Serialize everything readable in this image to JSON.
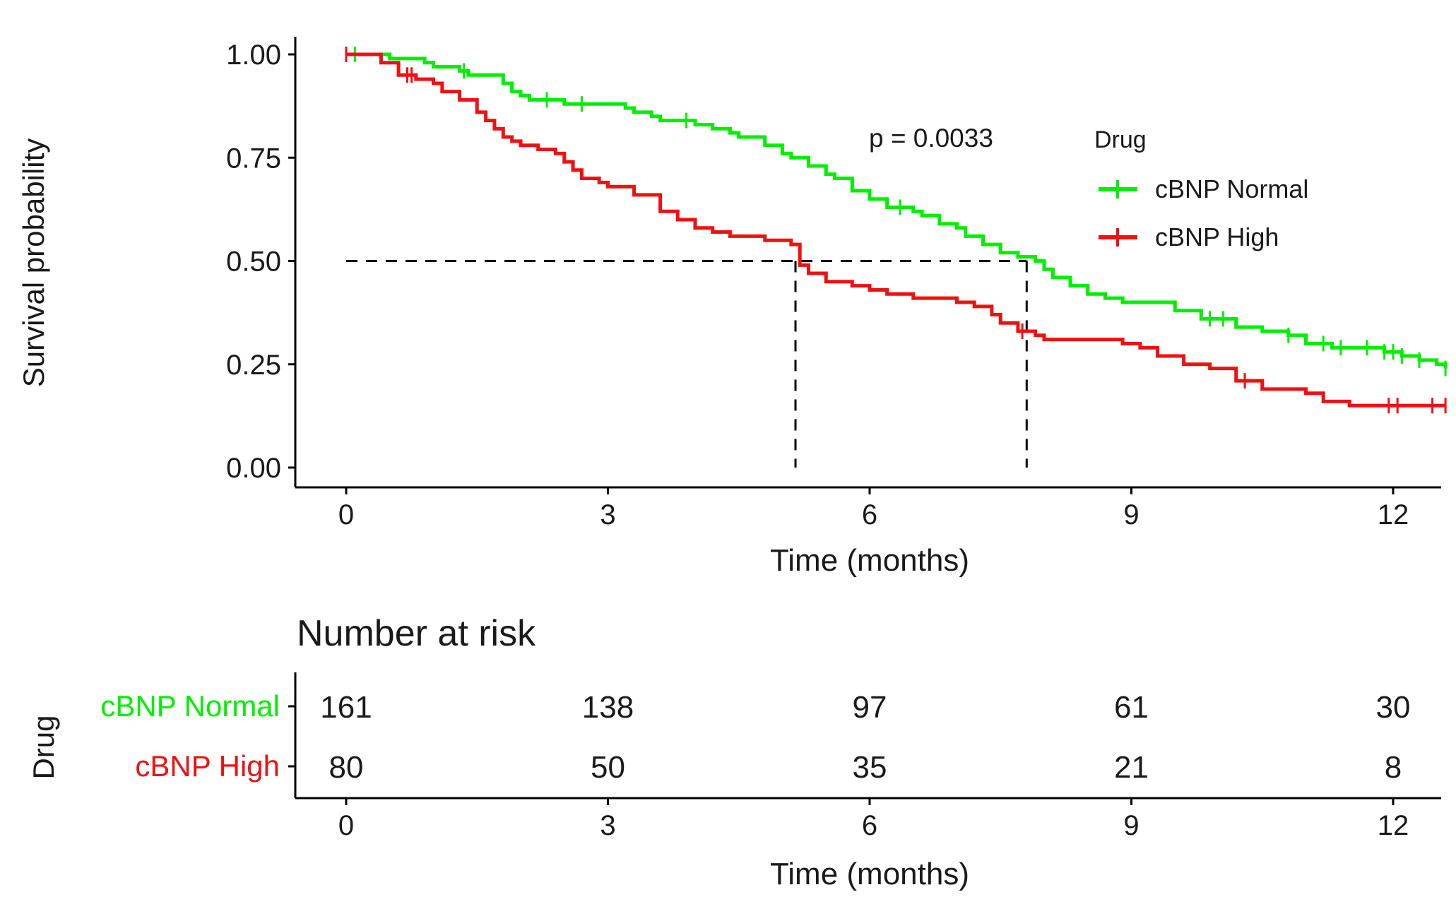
{
  "chart_data": [
    {
      "type": "line",
      "subtype": "kaplan-meier",
      "ylabel": "Survival probability",
      "xlabel": "Time (months)",
      "xlim": [
        -0.6,
        12.6
      ],
      "ylim": [
        0,
        1
      ],
      "xticks": [
        0,
        3,
        6,
        9,
        12
      ],
      "yticks": [
        "0.00",
        "0.25",
        "0.50",
        "0.75",
        "1.00"
      ],
      "grid": false,
      "pvalue_text": "p = 0.0033",
      "legend": {
        "title": "Drug",
        "position": "right"
      },
      "median_line": {
        "y": 0.5,
        "x": [
          5.15,
          7.8
        ]
      },
      "series": [
        {
          "name": "cBNP Normal",
          "color": "#00ee00",
          "x": [
            0,
            0.5,
            0.9,
            1.0,
            1.3,
            1.4,
            1.8,
            1.9,
            2.0,
            2.1,
            2.2,
            2.3,
            2.5,
            2.7,
            3.0,
            3.2,
            3.3,
            3.5,
            3.6,
            3.8,
            4.0,
            4.2,
            4.4,
            4.5,
            4.8,
            5.0,
            5.1,
            5.3,
            5.5,
            5.6,
            5.8,
            6.0,
            6.2,
            6.5,
            6.6,
            6.8,
            7.0,
            7.1,
            7.3,
            7.5,
            7.7,
            7.8,
            7.9,
            8.0,
            8.1,
            8.3,
            8.5,
            8.7,
            8.9,
            9.2,
            9.5,
            9.8,
            10.2,
            10.5,
            10.8,
            11.0,
            11.3,
            11.6,
            11.9,
            12.1,
            12.3,
            12.5,
            12.6
          ],
          "y": [
            1.0,
            0.99,
            0.98,
            0.97,
            0.96,
            0.95,
            0.93,
            0.91,
            0.9,
            0.89,
            0.89,
            0.89,
            0.88,
            0.88,
            0.88,
            0.87,
            0.86,
            0.85,
            0.84,
            0.84,
            0.83,
            0.82,
            0.81,
            0.8,
            0.78,
            0.76,
            0.75,
            0.73,
            0.71,
            0.7,
            0.67,
            0.65,
            0.63,
            0.62,
            0.61,
            0.59,
            0.58,
            0.56,
            0.54,
            0.52,
            0.51,
            0.51,
            0.5,
            0.48,
            0.46,
            0.44,
            0.42,
            0.41,
            0.4,
            0.4,
            0.38,
            0.36,
            0.34,
            0.33,
            0.32,
            0.3,
            0.29,
            0.29,
            0.28,
            0.27,
            0.26,
            0.25,
            0.24
          ],
          "censor_x": [
            0.1,
            1.35,
            2.3,
            2.7,
            3.9,
            6.35,
            9.9,
            10.05,
            10.8,
            11.2,
            11.4,
            11.7,
            11.9,
            12.0,
            12.1,
            12.3,
            12.6
          ],
          "risk": [
            161,
            138,
            97,
            61,
            30
          ]
        },
        {
          "name": "cBNP High",
          "color": "#ee1111",
          "x": [
            0,
            0.4,
            0.6,
            0.8,
            1.0,
            1.1,
            1.3,
            1.5,
            1.6,
            1.7,
            1.8,
            1.9,
            2.0,
            2.2,
            2.4,
            2.5,
            2.6,
            2.7,
            2.9,
            3.0,
            3.3,
            3.6,
            3.8,
            4.0,
            4.2,
            4.4,
            4.8,
            5.0,
            5.1,
            5.2,
            5.3,
            5.5,
            5.8,
            6.0,
            6.2,
            6.5,
            6.8,
            7.0,
            7.2,
            7.4,
            7.5,
            7.7,
            7.9,
            8.0,
            8.3,
            8.5,
            8.9,
            9.1,
            9.3,
            9.6,
            9.9,
            10.2,
            10.5,
            11.0,
            11.2,
            11.5,
            12.0,
            12.6
          ],
          "y": [
            1.0,
            0.98,
            0.95,
            0.94,
            0.93,
            0.91,
            0.89,
            0.86,
            0.84,
            0.82,
            0.8,
            0.79,
            0.78,
            0.77,
            0.76,
            0.74,
            0.72,
            0.7,
            0.69,
            0.68,
            0.66,
            0.62,
            0.6,
            0.58,
            0.57,
            0.56,
            0.55,
            0.55,
            0.54,
            0.49,
            0.47,
            0.45,
            0.44,
            0.43,
            0.42,
            0.41,
            0.41,
            0.4,
            0.39,
            0.37,
            0.35,
            0.33,
            0.32,
            0.31,
            0.31,
            0.31,
            0.3,
            0.29,
            0.27,
            0.25,
            0.24,
            0.21,
            0.19,
            0.18,
            0.16,
            0.15,
            0.15,
            0.15
          ],
          "censor_x": [
            0.0,
            0.7,
            0.75,
            7.75,
            10.3,
            11.95,
            12.05,
            12.45,
            12.6
          ],
          "risk": [
            80,
            50,
            35,
            21,
            8
          ]
        }
      ]
    },
    {
      "type": "table",
      "title": "Number at risk",
      "ylabel": "Drug",
      "xlabel": "Time (months)",
      "xticks": [
        0,
        3,
        6,
        9,
        12
      ],
      "rows": [
        {
          "name": "cBNP Normal",
          "color": "#00ee00",
          "values": [
            161,
            138,
            97,
            61,
            30
          ]
        },
        {
          "name": "cBNP High",
          "color": "#ee1111",
          "values": [
            80,
            50,
            35,
            21,
            8
          ]
        }
      ]
    }
  ]
}
